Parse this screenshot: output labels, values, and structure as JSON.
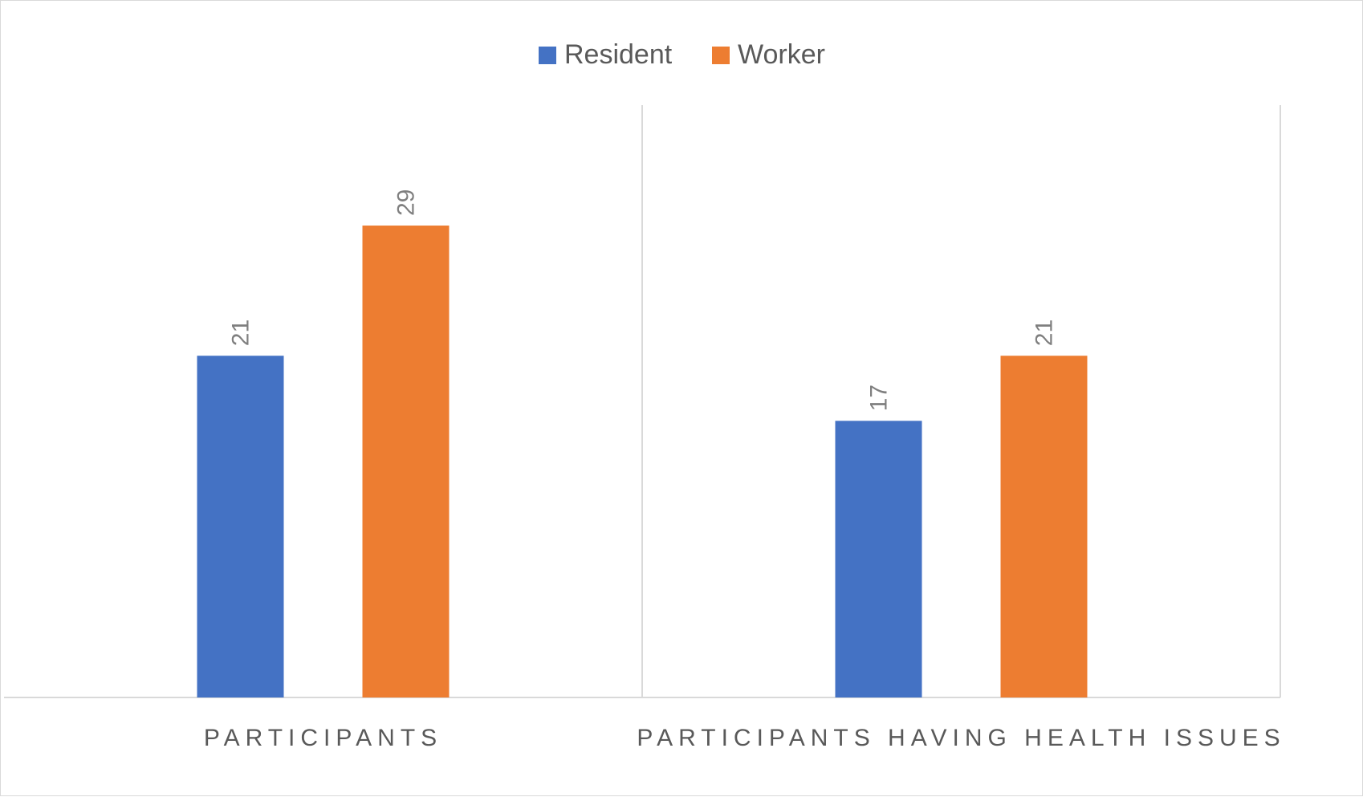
{
  "chart_data": {
    "type": "bar",
    "categories": [
      "PARTICIPANTS",
      "PARTICIPANTS HAVING HEALTH ISSUES"
    ],
    "series": [
      {
        "name": "Resident",
        "values": [
          21,
          17
        ],
        "color": "#4472c4"
      },
      {
        "name": "Worker",
        "values": [
          29,
          21
        ],
        "color": "#ed7d31"
      }
    ],
    "ylim": [
      0,
      36.4
    ],
    "grid": false,
    "legend": "top-center",
    "data_labels": true
  }
}
